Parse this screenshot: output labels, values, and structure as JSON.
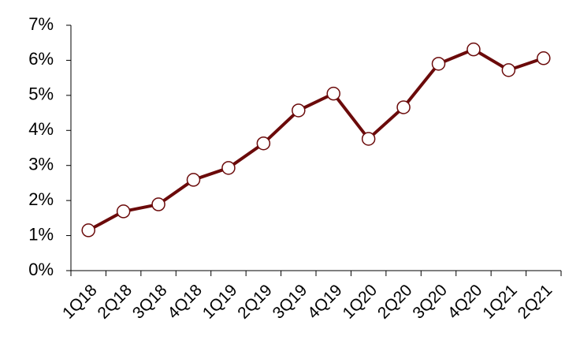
{
  "chart_data": {
    "type": "line",
    "categories": [
      "1Q18",
      "2Q18",
      "3Q18",
      "4Q18",
      "1Q19",
      "2Q19",
      "3Q19",
      "4Q19",
      "1Q20",
      "2Q20",
      "3Q20",
      "4Q20",
      "1Q21",
      "2Q21"
    ],
    "values": [
      1.15,
      1.69,
      1.89,
      2.59,
      2.93,
      3.63,
      4.57,
      5.05,
      3.76,
      4.66,
      5.9,
      6.31,
      5.72,
      6.06
    ],
    "color": "#6b0a0a",
    "ylim": [
      0,
      7
    ],
    "yticks": [
      {
        "value": 0,
        "label": "0%"
      },
      {
        "value": 1,
        "label": "1%"
      },
      {
        "value": 2,
        "label": "2%"
      },
      {
        "value": 3,
        "label": "3%"
      },
      {
        "value": 4,
        "label": "4%"
      },
      {
        "value": 5,
        "label": "5%"
      },
      {
        "value": 6,
        "label": "6%"
      },
      {
        "value": 7,
        "label": "7%"
      }
    ],
    "grid": false
  }
}
